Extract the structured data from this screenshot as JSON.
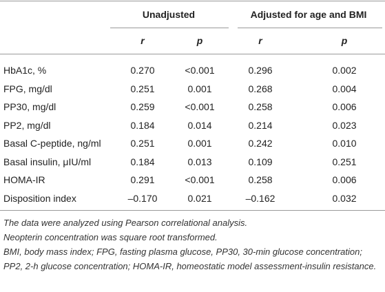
{
  "table": {
    "group_headers": [
      "Unadjusted",
      "Adjusted for age and BMI"
    ],
    "sub_headers": [
      "r",
      "p",
      "r",
      "p"
    ],
    "rows": [
      [
        "HbA1c, %",
        "0.270",
        "<0.001",
        "0.296",
        "0.002"
      ],
      [
        "FPG, mg/dl",
        "0.251",
        "0.001",
        "0.268",
        "0.004"
      ],
      [
        "PP30, mg/dl",
        "0.259",
        "<0.001",
        "0.258",
        "0.006"
      ],
      [
        "PP2, mg/dl",
        "0.184",
        "0.014",
        "0.214",
        "0.023"
      ],
      [
        "Basal C-peptide, ng/ml",
        "0.251",
        "0.001",
        "0.242",
        "0.010"
      ],
      [
        "Basal insulin, μIU/ml",
        "0.184",
        "0.013",
        "0.109",
        "0.251"
      ],
      [
        "HOMA-IR",
        "0.291",
        "<0.001",
        "0.258",
        "0.006"
      ],
      [
        "Disposition index",
        "–0.170",
        "0.021",
        "–0.162",
        "0.032"
      ]
    ]
  },
  "notes": [
    "The data were analyzed using Pearson correlational analysis.",
    "Neopterin concentration was square root transformed.",
    "BMI, body mass index; FPG, fasting plasma glucose, PP30, 30-min glucose concentration; PP2, 2-h glucose concentration; HOMA-IR, homeostatic model assessment-insulin resistance."
  ]
}
